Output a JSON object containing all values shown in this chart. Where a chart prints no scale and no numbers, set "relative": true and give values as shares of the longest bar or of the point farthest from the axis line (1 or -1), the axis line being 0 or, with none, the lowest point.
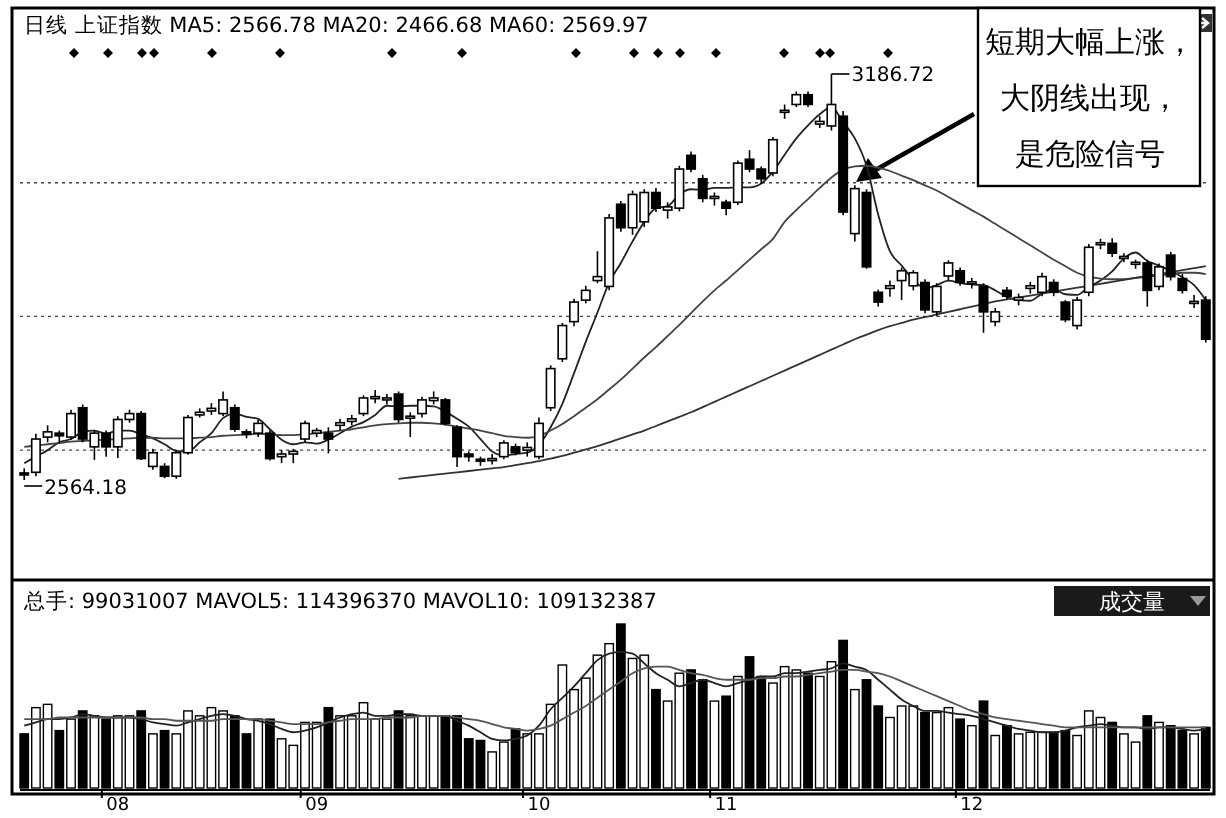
{
  "chart_data": [
    {
      "type": "candlestick",
      "title": "日线  上证指数 MA5: 2566.78 MA20: 2466.68 MA60: 2569.97",
      "grid": "y",
      "yticks": [
        {
          "value": 3020,
          "label": null
        },
        {
          "value": 2815,
          "label": null
        },
        {
          "value": 2610,
          "label": null
        }
      ],
      "categories": [
        null,
        null,
        null,
        null,
        null,
        null,
        null,
        null,
        null,
        null,
        null,
        null,
        null,
        null,
        null,
        null,
        null,
        null,
        null,
        null,
        null,
        null,
        null,
        null,
        null,
        null,
        null,
        null,
        null,
        null,
        null,
        null,
        null,
        null,
        null,
        null,
        null,
        null,
        null,
        null,
        null,
        null,
        null,
        null,
        null,
        null,
        null,
        null,
        null,
        null,
        null,
        null,
        null,
        null,
        null,
        null,
        null,
        null,
        null,
        null,
        null,
        null,
        null,
        null,
        null,
        null,
        null,
        null,
        null,
        null,
        null,
        null,
        null,
        null,
        null,
        null,
        null,
        null,
        null,
        null,
        null,
        null,
        null,
        null,
        null,
        null,
        null,
        null,
        null,
        null,
        null,
        null,
        null,
        null,
        null,
        null,
        null,
        null,
        null,
        null,
        null,
        null
      ],
      "ohlc": [
        [
          2575,
          2582,
          2564.18,
          2572
        ],
        [
          2576,
          2635,
          2570,
          2627
        ],
        [
          2630,
          2648,
          2622,
          2638
        ],
        [
          2636,
          2640,
          2620,
          2632
        ],
        [
          2630,
          2672,
          2626,
          2666
        ],
        [
          2675,
          2680,
          2622,
          2627
        ],
        [
          2615,
          2640,
          2595,
          2636
        ],
        [
          2636,
          2640,
          2600,
          2615
        ],
        [
          2615,
          2662,
          2598,
          2657
        ],
        [
          2657,
          2672,
          2652,
          2666
        ],
        [
          2666,
          2670,
          2595,
          2597
        ],
        [
          2585,
          2612,
          2580,
          2606
        ],
        [
          2585,
          2590,
          2567,
          2570
        ],
        [
          2570,
          2610,
          2566,
          2606
        ],
        [
          2606,
          2664,
          2603,
          2660
        ],
        [
          2664,
          2674,
          2660,
          2668
        ],
        [
          2670,
          2682,
          2664,
          2674
        ],
        [
          2666,
          2700,
          2662,
          2687
        ],
        [
          2675,
          2680,
          2638,
          2642
        ],
        [
          2638,
          2642,
          2628,
          2634
        ],
        [
          2636,
          2656,
          2630,
          2651
        ],
        [
          2636,
          2640,
          2594,
          2597
        ],
        [
          2600,
          2610,
          2590,
          2604
        ],
        [
          2604,
          2612,
          2590,
          2608
        ],
        [
          2627,
          2655,
          2622,
          2651
        ],
        [
          2636,
          2644,
          2630,
          2640
        ],
        [
          2636,
          2645,
          2605,
          2627
        ],
        [
          2648,
          2658,
          2640,
          2652
        ],
        [
          2654,
          2664,
          2648,
          2658
        ],
        [
          2666,
          2694,
          2662,
          2690
        ],
        [
          2690,
          2702,
          2682,
          2692
        ],
        [
          2688,
          2696,
          2680,
          2690
        ],
        [
          2696,
          2700,
          2652,
          2657
        ],
        [
          2660,
          2668,
          2630,
          2662
        ],
        [
          2666,
          2692,
          2660,
          2687
        ],
        [
          2686,
          2700,
          2680,
          2690
        ],
        [
          2687,
          2690,
          2648,
          2651
        ],
        [
          2645,
          2648,
          2584,
          2600
        ],
        [
          2604,
          2608,
          2592,
          2600
        ],
        [
          2596,
          2600,
          2586,
          2594
        ],
        [
          2594,
          2604,
          2588,
          2597
        ],
        [
          2600,
          2625,
          2596,
          2621
        ],
        [
          2615,
          2620,
          2602,
          2606
        ],
        [
          2610,
          2622,
          2600,
          2614
        ],
        [
          2600,
          2660,
          2596,
          2651
        ],
        [
          2675,
          2740,
          2670,
          2735
        ],
        [
          2750,
          2805,
          2745,
          2801
        ],
        [
          2807,
          2842,
          2800,
          2837
        ],
        [
          2840,
          2862,
          2835,
          2855
        ],
        [
          2870,
          2915,
          2866,
          2876
        ],
        [
          2861,
          2972,
          2855,
          2966
        ],
        [
          2987,
          2992,
          2945,
          2951
        ],
        [
          2951,
          3008,
          2940,
          3002
        ],
        [
          2960,
          3010,
          2952,
          3005
        ],
        [
          3005,
          3012,
          2975,
          2981
        ],
        [
          2978,
          2990,
          2965,
          2983
        ],
        [
          2981,
          3046,
          2976,
          3041
        ],
        [
          3062,
          3068,
          3036,
          3041
        ],
        [
          3026,
          3032,
          2990,
          2996
        ],
        [
          2996,
          3005,
          2985,
          2999
        ],
        [
          2990,
          2994,
          2970,
          2981
        ],
        [
          2990,
          3054,
          2986,
          3050
        ],
        [
          3056,
          3070,
          3036,
          3041
        ],
        [
          3041,
          3045,
          3018,
          3026
        ],
        [
          3035,
          3090,
          3030,
          3086
        ],
        [
          3128,
          3140,
          3118,
          3131
        ],
        [
          3140,
          3160,
          3136,
          3155
        ],
        [
          3155,
          3160,
          3136,
          3140
        ],
        [
          3110,
          3122,
          3104,
          3114
        ],
        [
          3107,
          3186.72,
          3100,
          3140
        ],
        [
          3122,
          3130,
          2970,
          2975
        ],
        [
          2942,
          3016,
          2930,
          3011
        ],
        [
          3005,
          3010,
          2888,
          2891
        ],
        [
          2852,
          2856,
          2830,
          2837
        ],
        [
          2858,
          2870,
          2845,
          2862
        ],
        [
          2870,
          2890,
          2840,
          2885
        ],
        [
          2862,
          2886,
          2855,
          2882
        ],
        [
          2867,
          2872,
          2820,
          2825
        ],
        [
          2822,
          2866,
          2815,
          2861
        ],
        [
          2877,
          2901,
          2870,
          2897
        ],
        [
          2885,
          2890,
          2862,
          2867
        ],
        [
          2865,
          2874,
          2858,
          2868
        ],
        [
          2861,
          2866,
          2790,
          2822
        ],
        [
          2807,
          2828,
          2800,
          2822
        ],
        [
          2855,
          2860,
          2840,
          2846
        ],
        [
          2840,
          2850,
          2832,
          2844
        ],
        [
          2858,
          2868,
          2850,
          2862
        ],
        [
          2852,
          2882,
          2846,
          2876
        ],
        [
          2867,
          2872,
          2846,
          2852
        ],
        [
          2837,
          2840,
          2806,
          2810
        ],
        [
          2801,
          2845,
          2795,
          2840
        ],
        [
          2852,
          2926,
          2846,
          2921
        ],
        [
          2925,
          2934,
          2918,
          2928
        ],
        [
          2927,
          2935,
          2906,
          2912
        ],
        [
          2904,
          2912,
          2898,
          2907
        ],
        [
          2895,
          2902,
          2888,
          2898
        ],
        [
          2897,
          2902,
          2830,
          2855
        ],
        [
          2861,
          2896,
          2855,
          2891
        ],
        [
          2909,
          2914,
          2870,
          2876
        ],
        [
          2873,
          2880,
          2850,
          2855
        ],
        [
          2835,
          2848,
          2828,
          2838
        ],
        [
          2840,
          2846,
          2775,
          2780
        ]
      ],
      "series": [
        {
          "type": "line",
          "color": "#222222",
          "values": [
            2590,
            2600,
            2610,
            2622,
            2627,
            2638,
            2640,
            2635,
            2640,
            2640,
            2634,
            2628,
            2619,
            2609,
            2608,
            2622,
            2636,
            2659,
            2666,
            2661,
            2658,
            2642,
            2626,
            2619,
            2622,
            2620,
            2626,
            2636,
            2646,
            2653,
            2664,
            2678,
            2677,
            2678,
            2678,
            2677,
            2669,
            2658,
            2646,
            2627,
            2608,
            2602,
            2604,
            2606,
            2618,
            2645,
            2681,
            2728,
            2776,
            2821,
            2867,
            2897,
            2930,
            2960,
            2981,
            2984,
            3002,
            3010,
            3009,
            3012,
            3012,
            3013,
            3013,
            3019,
            3037,
            3063,
            3088,
            3108,
            3125,
            3136,
            3113,
            3088,
            3046,
            2971,
            2915,
            2893,
            2871,
            2858,
            2863,
            2870,
            2866,
            2864,
            2863,
            2855,
            2845,
            2840,
            2839,
            2850,
            2856,
            2849,
            2848,
            2860,
            2870,
            2884,
            2904,
            2913,
            2900,
            2893,
            2885,
            2875,
            2863,
            2840
          ]
        },
        {
          "type": "line",
          "color": "#444444",
          "values": [
            2615,
            2617,
            2619,
            2621,
            2623,
            2624,
            2625,
            2626,
            2627,
            2628,
            2629,
            2629,
            2628,
            2628,
            2628,
            2629,
            2630,
            2632,
            2633,
            2634,
            2635,
            2634,
            2633,
            2633,
            2634,
            2636,
            2638,
            2640,
            2642,
            2645,
            2648,
            2650,
            2651,
            2652,
            2652,
            2651,
            2649,
            2646,
            2643,
            2640,
            2636,
            2632,
            2630,
            2629,
            2632,
            2640,
            2650,
            2662,
            2675,
            2688,
            2703,
            2718,
            2735,
            2752,
            2768,
            2785,
            2802,
            2820,
            2838,
            2855,
            2870,
            2886,
            2902,
            2918,
            2934,
            2960,
            2978,
            2995,
            3012,
            3028,
            3040,
            3045,
            3046,
            3043,
            3038,
            3031,
            3024,
            3016,
            3008,
            2998,
            2988,
            2978,
            2968,
            2957,
            2946,
            2935,
            2924,
            2913,
            2902,
            2892,
            2882,
            2876,
            2873,
            2872,
            2872,
            2874,
            2876,
            2878,
            2880,
            2882,
            2882,
            2880
          ]
        },
        {
          "type": "line",
          "color": "#333333",
          "values": [
            null,
            null,
            null,
            null,
            null,
            null,
            null,
            null,
            null,
            null,
            null,
            null,
            null,
            null,
            null,
            null,
            null,
            null,
            null,
            null,
            null,
            null,
            null,
            null,
            null,
            null,
            null,
            null,
            null,
            null,
            null,
            null,
            2566,
            2568,
            2570,
            2572,
            2574,
            2576,
            2578,
            2580,
            2582,
            2584,
            2587,
            2590,
            2593,
            2597,
            2601,
            2606,
            2611,
            2616,
            2622,
            2628,
            2634,
            2640,
            2647,
            2654,
            2661,
            2668,
            2676,
            2684,
            2692,
            2700,
            2708,
            2716,
            2724,
            2732,
            2740,
            2748,
            2756,
            2764,
            2772,
            2780,
            2787,
            2794,
            2800,
            2805,
            2810,
            2814,
            2818,
            2822,
            2826,
            2830,
            2834,
            2838,
            2841,
            2844,
            2847,
            2850,
            2853,
            2856,
            2859,
            2862,
            2865,
            2868,
            2871,
            2874,
            2877,
            2880,
            2883,
            2886,
            2889,
            2892
          ]
        }
      ],
      "annotations": [
        "3186.72",
        "2564.18",
        "短期大幅上涨，",
        "大阴线出现，",
        "是危险信号"
      ]
    },
    {
      "type": "bar",
      "relative": true,
      "title": "总手: 99031007 MAVOL5: 114396370 MAVOL10: 109132387",
      "subtitle": "成交量",
      "categories": [
        null,
        null,
        null,
        null,
        null,
        null,
        null,
        null,
        "08",
        null,
        null,
        null,
        null,
        null,
        null,
        null,
        null,
        null,
        null,
        null,
        null,
        null,
        null,
        null,
        null,
        "09",
        null,
        null,
        null,
        null,
        null,
        null,
        null,
        null,
        null,
        null,
        null,
        null,
        null,
        null,
        null,
        null,
        null,
        null,
        "10",
        null,
        null,
        null,
        null,
        null,
        null,
        null,
        null,
        null,
        null,
        null,
        null,
        null,
        null,
        null,
        "11",
        null,
        null,
        null,
        null,
        null,
        null,
        null,
        null,
        null,
        null,
        null,
        null,
        null,
        null,
        null,
        null,
        null,
        null,
        null,
        null,
        "12",
        null,
        null,
        null,
        null,
        null,
        null,
        null,
        null,
        null,
        null,
        null,
        null,
        null,
        null,
        null,
        null,
        null,
        null,
        null,
        null
      ],
      "series": [
        {
          "values": [
            0.33,
            0.49,
            0.51,
            0.35,
            0.42,
            0.47,
            0.44,
            0.42,
            0.44,
            0.44,
            0.47,
            0.33,
            0.35,
            0.33,
            0.47,
            0.44,
            0.49,
            0.47,
            0.44,
            0.33,
            0.42,
            0.42,
            0.3,
            0.26,
            0.4,
            0.4,
            0.49,
            0.44,
            0.44,
            0.52,
            0.42,
            0.42,
            0.47,
            0.44,
            0.44,
            0.44,
            0.44,
            0.44,
            0.3,
            0.29,
            0.22,
            0.28,
            0.36,
            0.33,
            0.33,
            0.51,
            0.75,
            0.6,
            0.67,
            0.81,
            0.88,
            1,
            0.79,
            0.81,
            0.6,
            0.53,
            0.7,
            0.72,
            0.66,
            0.53,
            0.56,
            0.68,
            0.8,
            0.68,
            0.64,
            0.74,
            0.72,
            0.7,
            0.68,
            0.77,
            0.9,
            0.6,
            0.66,
            0.5,
            0.43,
            0.5,
            0.5,
            0.46,
            0.46,
            0.49,
            0.42,
            0.38,
            0.53,
            0.32,
            0.38,
            0.33,
            0.34,
            0.34,
            0.34,
            0.35,
            0.32,
            0.47,
            0.43,
            0.4,
            0.33,
            0.28,
            0.44,
            0.4,
            0.38,
            0.35,
            0.33,
            0.37
          ],
          "colors": [
            "#000000",
            "#ffffff",
            "#ffffff",
            "#000000",
            "#ffffff",
            "#000000",
            "#ffffff",
            "#000000",
            "#ffffff",
            "#ffffff",
            "#000000",
            "#ffffff",
            "#000000",
            "#ffffff",
            "#ffffff",
            "#ffffff",
            "#ffffff",
            "#ffffff",
            "#000000",
            "#000000",
            "#ffffff",
            "#000000",
            "#ffffff",
            "#ffffff",
            "#ffffff",
            "#ffffff",
            "#000000",
            "#ffffff",
            "#ffffff",
            "#ffffff",
            "#ffffff",
            "#ffffff",
            "#000000",
            "#ffffff",
            "#ffffff",
            "#ffffff",
            "#000000",
            "#000000",
            "#000000",
            "#000000",
            "#ffffff",
            "#ffffff",
            "#000000",
            "#ffffff",
            "#ffffff",
            "#ffffff",
            "#ffffff",
            "#ffffff",
            "#ffffff",
            "#ffffff",
            "#ffffff",
            "#000000",
            "#ffffff",
            "#ffffff",
            "#000000",
            "#ffffff",
            "#ffffff",
            "#000000",
            "#000000",
            "#ffffff",
            "#000000",
            "#ffffff",
            "#000000",
            "#000000",
            "#ffffff",
            "#ffffff",
            "#ffffff",
            "#000000",
            "#ffffff",
            "#ffffff",
            "#000000",
            "#ffffff",
            "#000000",
            "#000000",
            "#ffffff",
            "#ffffff",
            "#ffffff",
            "#000000",
            "#ffffff",
            "#ffffff",
            "#000000",
            "#ffffff",
            "#000000",
            "#ffffff",
            "#000000",
            "#ffffff",
            "#ffffff",
            "#ffffff",
            "#000000",
            "#000000",
            "#ffffff",
            "#ffffff",
            "#ffffff",
            "#000000",
            "#ffffff",
            "#ffffff",
            "#000000",
            "#ffffff",
            "#000000",
            "#000000",
            "#ffffff",
            "#000000"
          ]
        },
        {
          "type": "line",
          "color": "#222222",
          "values": [
            0.38,
            0.4,
            0.42,
            0.42,
            0.43,
            0.45,
            0.44,
            0.43,
            0.43,
            0.43,
            0.42,
            0.4,
            0.39,
            0.38,
            0.4,
            0.42,
            0.44,
            0.45,
            0.44,
            0.42,
            0.41,
            0.39,
            0.36,
            0.34,
            0.35,
            0.37,
            0.4,
            0.43,
            0.45,
            0.46,
            0.44,
            0.44,
            0.45,
            0.45,
            0.44,
            0.44,
            0.44,
            0.41,
            0.38,
            0.34,
            0.3,
            0.29,
            0.3,
            0.32,
            0.38,
            0.48,
            0.55,
            0.62,
            0.7,
            0.78,
            0.82,
            0.83,
            0.82,
            0.76,
            0.7,
            0.66,
            0.62,
            0.64,
            0.66,
            0.64,
            0.62,
            0.64,
            0.66,
            0.68,
            0.68,
            0.7,
            0.7,
            0.71,
            0.72,
            0.73,
            0.76,
            0.74,
            0.72,
            0.66,
            0.6,
            0.54,
            0.5,
            0.47,
            0.47,
            0.46,
            0.45,
            0.44,
            0.42,
            0.4,
            0.38,
            0.36,
            0.35,
            0.34,
            0.34,
            0.35,
            0.37,
            0.38,
            0.39,
            0.38,
            0.37,
            0.37,
            0.36,
            0.37,
            0.37,
            0.36,
            0.35,
            0.36
          ]
        },
        {
          "type": "line",
          "color": "#555555",
          "values": [
            0.42,
            0.42,
            0.42,
            0.43,
            0.43,
            0.43,
            0.43,
            0.43,
            0.43,
            0.43,
            0.43,
            0.42,
            0.42,
            0.41,
            0.41,
            0.41,
            0.41,
            0.42,
            0.42,
            0.42,
            0.42,
            0.41,
            0.4,
            0.39,
            0.39,
            0.39,
            0.4,
            0.41,
            0.42,
            0.42,
            0.42,
            0.43,
            0.43,
            0.43,
            0.44,
            0.44,
            0.44,
            0.43,
            0.42,
            0.41,
            0.39,
            0.37,
            0.36,
            0.35,
            0.36,
            0.38,
            0.42,
            0.46,
            0.5,
            0.55,
            0.6,
            0.65,
            0.7,
            0.73,
            0.74,
            0.74,
            0.72,
            0.7,
            0.69,
            0.67,
            0.66,
            0.66,
            0.66,
            0.67,
            0.67,
            0.68,
            0.68,
            0.69,
            0.7,
            0.71,
            0.72,
            0.72,
            0.71,
            0.7,
            0.68,
            0.65,
            0.62,
            0.59,
            0.56,
            0.53,
            0.5,
            0.47,
            0.45,
            0.43,
            0.42,
            0.41,
            0.4,
            0.39,
            0.38,
            0.37,
            0.37,
            0.37,
            0.37,
            0.37,
            0.37,
            0.37,
            0.37,
            0.37,
            0.37,
            0.37,
            0.37,
            0.37
          ]
        }
      ]
    }
  ]
}
